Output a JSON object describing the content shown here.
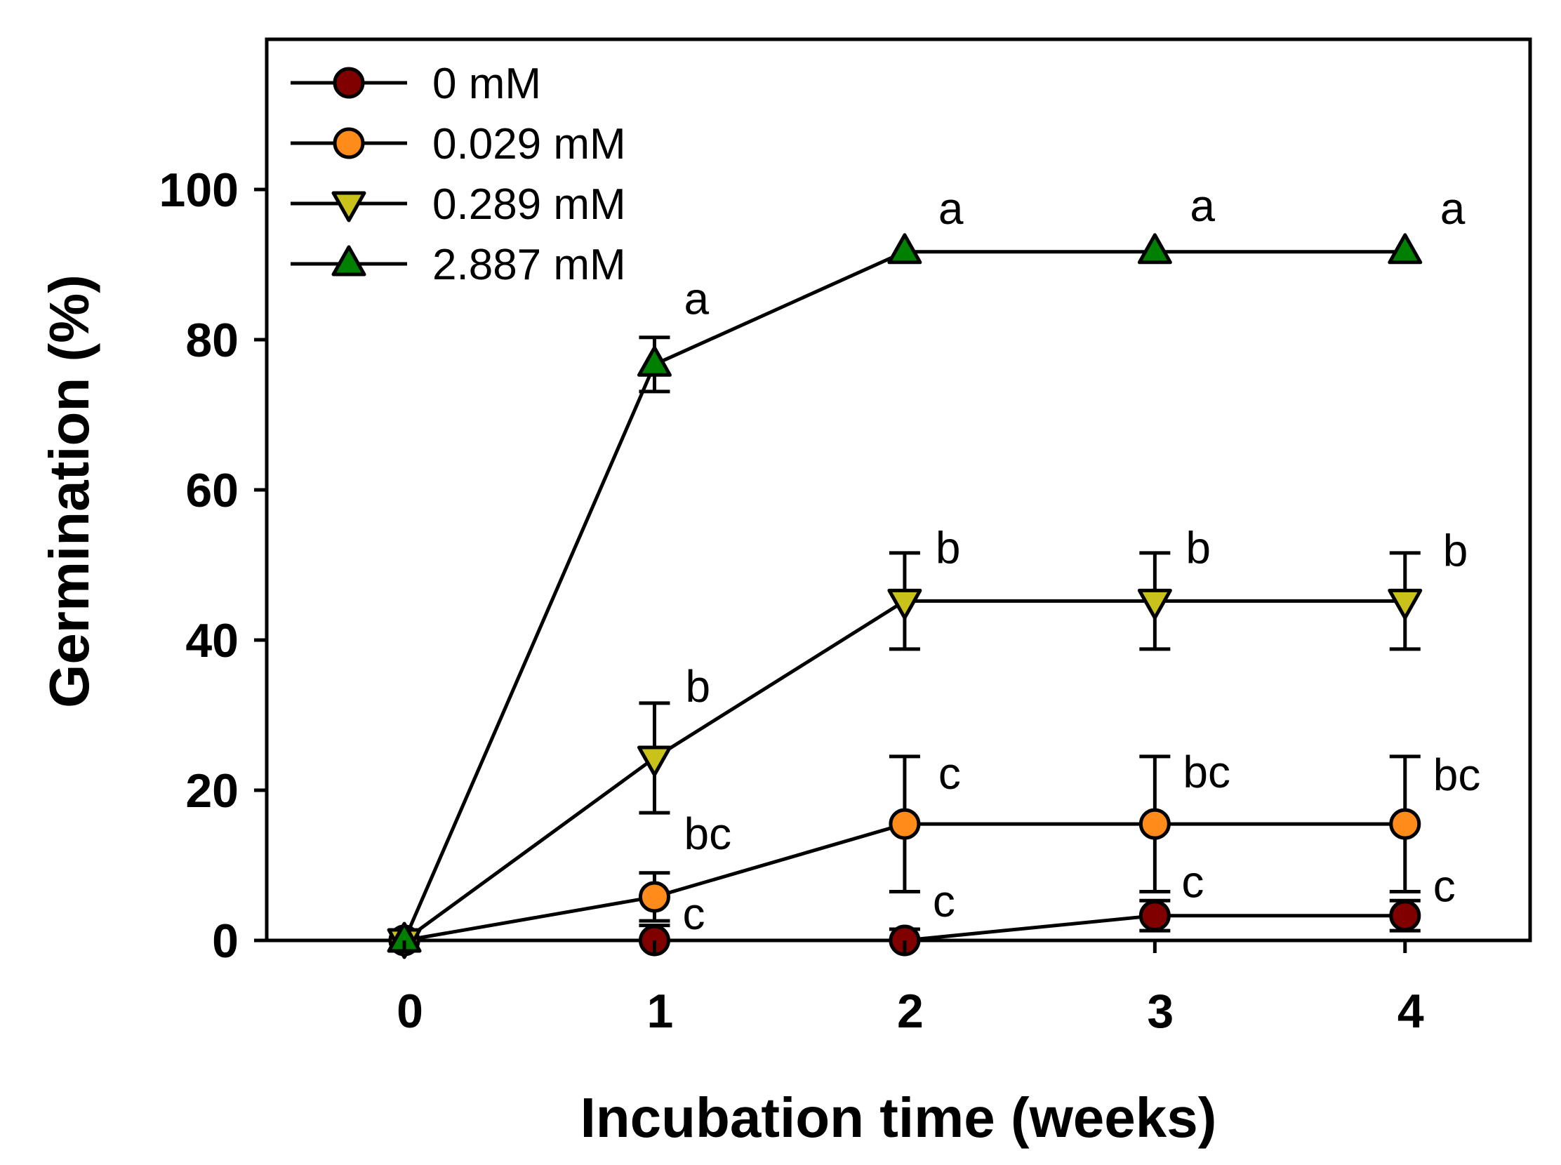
{
  "chart_data": {
    "type": "line",
    "xlabel": "Incubation time (weeks)",
    "ylabel": "Germination (%)",
    "xlim": [
      -0.55,
      4.5
    ],
    "ylim": [
      0,
      120
    ],
    "x_ticks": [
      0,
      1,
      2,
      3,
      4
    ],
    "y_ticks": [
      0,
      20,
      40,
      60,
      80,
      100
    ],
    "legend_position": "top-left",
    "grid": false,
    "series": [
      {
        "name": "0 mM",
        "marker": "circle",
        "color": "#800000",
        "x": [
          0,
          1,
          2,
          3,
          4
        ],
        "values": [
          0,
          0,
          0,
          3.3,
          3.3
        ],
        "error": [
          0,
          2.0,
          1.5,
          2.0,
          2.0
        ],
        "letters": [
          "",
          "c",
          "c",
          "c",
          "c"
        ]
      },
      {
        "name": "0.029 mM",
        "marker": "circle",
        "color": "#ff8c1a",
        "x": [
          0,
          1,
          2,
          3,
          4
        ],
        "values": [
          0,
          5.8,
          15.5,
          15.5,
          15.5
        ],
        "error": [
          0,
          3.2,
          9.0,
          9.0,
          9.0
        ],
        "letters": [
          "",
          "bc",
          "c",
          "bc",
          "bc"
        ]
      },
      {
        "name": "0.289 mM",
        "marker": "triangle-down",
        "color": "#c8c21a",
        "x": [
          0,
          1,
          2,
          3,
          4
        ],
        "values": [
          0,
          24.3,
          45.2,
          45.2,
          45.2
        ],
        "error": [
          0,
          7.3,
          6.4,
          6.4,
          6.4
        ],
        "letters": [
          "",
          "b",
          "b",
          "b",
          "b"
        ]
      },
      {
        "name": "2.887 mM",
        "marker": "triangle-up",
        "color": "#008000",
        "x": [
          0,
          1,
          2,
          3,
          4
        ],
        "values": [
          0,
          76.7,
          91.7,
          91.7,
          91.7
        ],
        "error": [
          0,
          3.6,
          0,
          0,
          0
        ],
        "letters": [
          "",
          "a",
          "a",
          "a",
          "a"
        ]
      }
    ]
  }
}
